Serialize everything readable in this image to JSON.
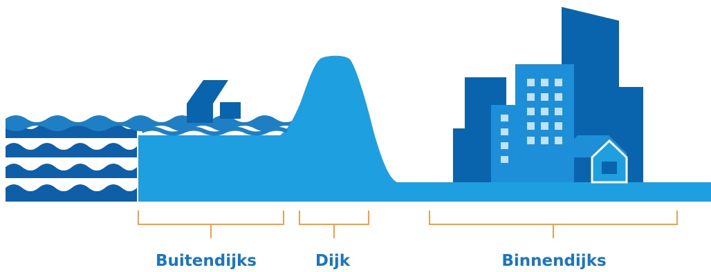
{
  "diagram": {
    "zones": [
      {
        "id": "outer",
        "label": "Buitendijks"
      },
      {
        "id": "dike",
        "label": "Dijk"
      },
      {
        "id": "inner",
        "label": "Binnendijks"
      }
    ],
    "colors": {
      "water_dark": "#0f5fa8",
      "water_mid": "#1f7fc4",
      "ground": "#1ea0e0",
      "city_dark": "#0a63ad",
      "city_mid": "#1c8fd8",
      "window": "#bfe2f8",
      "bracket": "#f0a046",
      "label": "#1976c2"
    }
  }
}
